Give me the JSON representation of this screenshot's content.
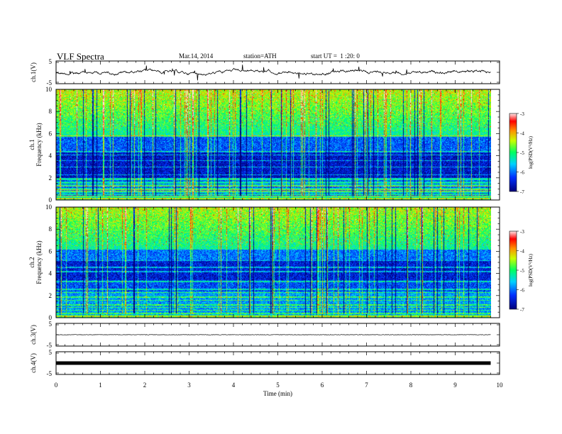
{
  "header": {
    "title": "VLF Spectra",
    "date": "Mar.14, 2014",
    "station": "station=ATH",
    "start": "start UT =  1 :20: 0"
  },
  "chart_data": [
    {
      "type": "line",
      "name": "ch1-waveform",
      "ylabel": "ch.1(V)",
      "ylim": [
        -5,
        5
      ],
      "yticks": [
        "5",
        "-5"
      ],
      "xlim": [
        0,
        10
      ],
      "data_end_x": 9.8
    },
    {
      "type": "heatmap",
      "name": "ch1-spectrogram",
      "ylabel_channel": "ch.1",
      "ylabel": "Frequency (kHz)",
      "ylim": [
        0,
        10
      ],
      "yticks": [
        "0",
        "2",
        "4",
        "6",
        "8",
        "10"
      ],
      "colorbar": {
        "label": "log(PSD(V²/Hz)",
        "ticks": [
          "-3",
          "-4",
          "-5",
          "-6",
          "-7"
        ],
        "range": [
          -7,
          -3
        ]
      }
    },
    {
      "type": "heatmap",
      "name": "ch2-spectrogram",
      "ylabel_channel": "ch.2",
      "ylabel": "Frequency (kHz)",
      "ylim": [
        0,
        10
      ],
      "yticks": [
        "0",
        "2",
        "4",
        "6",
        "8",
        "10"
      ],
      "colorbar": {
        "label": "log(PSD(V²/Hz)",
        "ticks": [
          "-3",
          "-4",
          "-5",
          "-6",
          "-7"
        ],
        "range": [
          -7,
          -3
        ]
      }
    },
    {
      "type": "line",
      "name": "ch3-waveform",
      "ylabel": "ch.3(V)",
      "ylim": [
        -5,
        5
      ],
      "yticks": [
        "5",
        "-5"
      ],
      "trace_level": 0.0
    },
    {
      "type": "line",
      "name": "ch4-waveform",
      "ylabel": "ch.4(V)",
      "ylim": [
        -5,
        5
      ],
      "yticks": [
        "5",
        "-5"
      ],
      "trace_level": 0.0
    }
  ],
  "x_axis": {
    "label": "Time (min)",
    "ticks": [
      "0",
      "1",
      "2",
      "3",
      "4",
      "5",
      "6",
      "7",
      "8",
      "9",
      "10"
    ],
    "range": [
      0,
      10
    ]
  },
  "colors": {
    "low": "#00007a",
    "mid": "#00e0e0",
    "high": "#ff0000",
    "line": "#000000"
  }
}
